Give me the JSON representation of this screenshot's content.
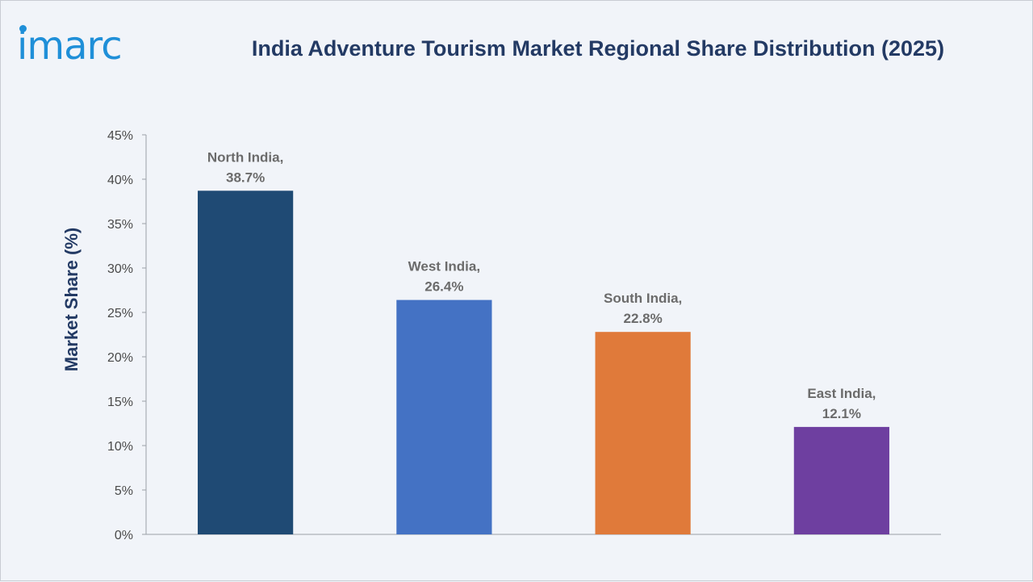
{
  "logo": {
    "text": "imarc"
  },
  "colors": {
    "background": "#f1f4f9",
    "title": "#233a64",
    "logo": "#1f8fd8",
    "axis": "#9aa0a8",
    "tick_text": "#4a4a4a",
    "label_text": "#6b6b6b"
  },
  "chart_data": {
    "type": "bar",
    "title": "India Adventure Tourism Market Regional Share Distribution (2025)",
    "xlabel": "",
    "ylabel": "Market Share (%)",
    "categories": [
      "North India",
      "West India",
      "South India",
      "East India"
    ],
    "values": [
      38.7,
      26.4,
      22.8,
      12.1
    ],
    "data_labels": [
      [
        "North India,",
        "38.7%"
      ],
      [
        "West India,",
        "26.4%"
      ],
      [
        "South India,",
        "22.8%"
      ],
      [
        "East India,",
        "12.1%"
      ]
    ],
    "bar_colors": [
      "#1f4a74",
      "#4472c4",
      "#e07a3a",
      "#6e3fa0"
    ],
    "ylim": [
      0,
      45
    ],
    "yticks": [
      0,
      5,
      10,
      15,
      20,
      25,
      30,
      35,
      40,
      45
    ],
    "ytick_labels": [
      "0%",
      "5%",
      "10%",
      "15%",
      "20%",
      "25%",
      "30%",
      "35%",
      "40%",
      "45%"
    ],
    "grid": false,
    "legend": "none"
  }
}
